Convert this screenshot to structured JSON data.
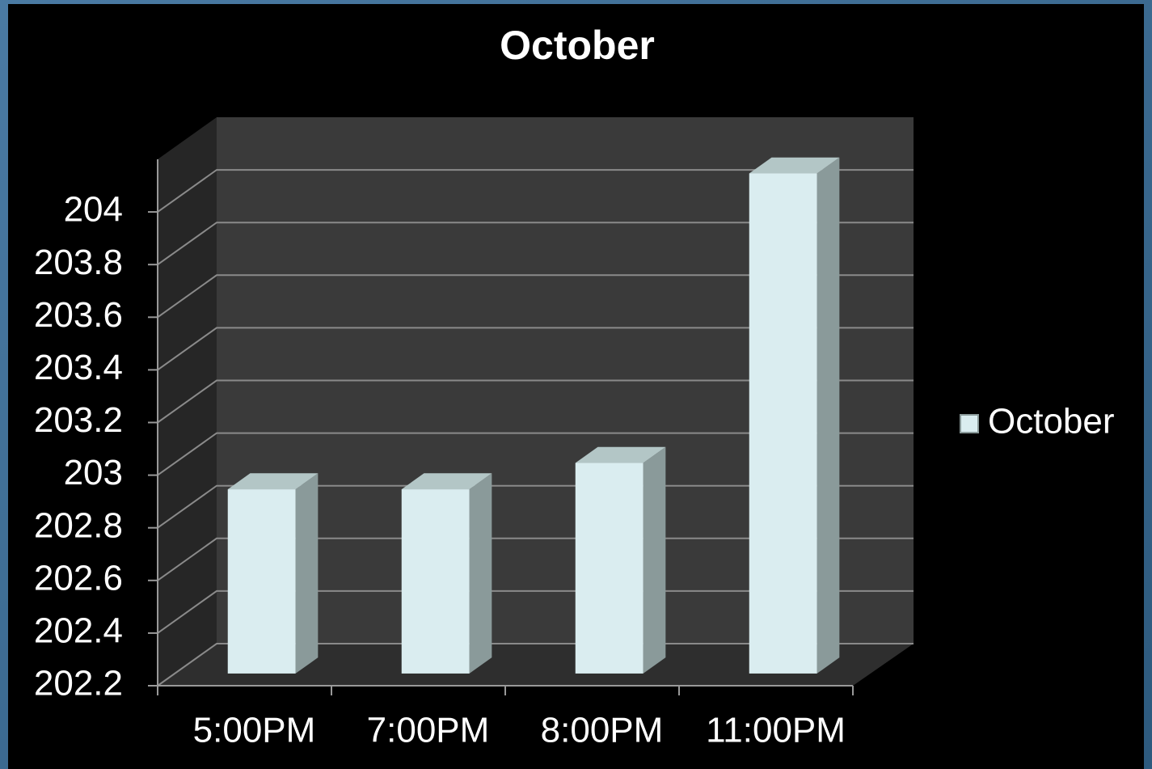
{
  "chart_data": {
    "type": "bar3d",
    "title": "October",
    "categories": [
      "5:00PM",
      "7:00PM",
      "8:00PM",
      "11:00PM"
    ],
    "series": [
      {
        "name": "October",
        "color": "#daedf0",
        "values": [
          202.9,
          202.9,
          203,
          204.1
        ]
      }
    ],
    "ylim": [
      202.2,
      204.2
    ],
    "yticks": [
      202.2,
      202.4,
      202.6,
      202.8,
      203,
      203.2,
      203.4,
      203.6,
      203.8,
      204
    ],
    "grid": true,
    "legend": "right"
  }
}
